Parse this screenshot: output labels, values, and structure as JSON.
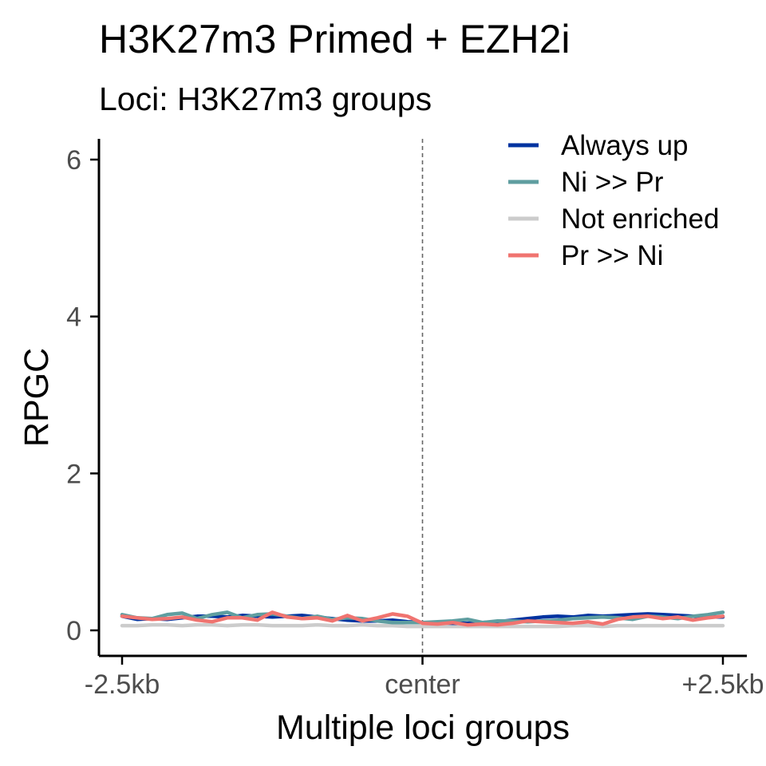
{
  "chart_data": {
    "type": "line",
    "title": "H3K27m3 Primed + EZH2i",
    "subtitle": "Loci: H3K27m3 groups",
    "xlabel": "Multiple loci groups",
    "ylabel": "RPGC",
    "x_tick_labels": [
      "-2.5kb",
      "center",
      "+2.5kb"
    ],
    "y_ticks": [
      0,
      2,
      4,
      6
    ],
    "xlim": [
      -2.5,
      2.5
    ],
    "ylim": [
      0,
      6.2
    ],
    "center_line": "dashed",
    "grid": false,
    "legend_position": "top-right",
    "x": [
      -2.5,
      -2.375,
      -2.25,
      -2.125,
      -2.0,
      -1.875,
      -1.75,
      -1.625,
      -1.5,
      -1.375,
      -1.25,
      -1.125,
      -1.0,
      -0.875,
      -0.75,
      -0.625,
      -0.5,
      -0.375,
      -0.25,
      -0.125,
      0.0,
      0.125,
      0.25,
      0.375,
      0.5,
      0.625,
      0.75,
      0.875,
      1.0,
      1.125,
      1.25,
      1.375,
      1.5,
      1.625,
      1.75,
      1.875,
      2.0,
      2.125,
      2.25,
      2.375,
      2.5
    ],
    "series": [
      {
        "name": "Always up",
        "color": "#0033a0",
        "values": [
          0.18,
          0.14,
          0.15,
          0.14,
          0.16,
          0.18,
          0.18,
          0.17,
          0.19,
          0.18,
          0.17,
          0.18,
          0.19,
          0.17,
          0.15,
          0.13,
          0.12,
          0.12,
          0.13,
          0.11,
          0.1,
          0.1,
          0.09,
          0.09,
          0.1,
          0.11,
          0.13,
          0.15,
          0.17,
          0.18,
          0.17,
          0.19,
          0.18,
          0.19,
          0.2,
          0.21,
          0.2,
          0.19,
          0.18,
          0.17,
          0.17
        ]
      },
      {
        "name": "Ni >> Pr",
        "color": "#5f9ea0",
        "values": [
          0.2,
          0.16,
          0.15,
          0.2,
          0.22,
          0.15,
          0.2,
          0.23,
          0.16,
          0.2,
          0.21,
          0.18,
          0.15,
          0.18,
          0.14,
          0.16,
          0.15,
          0.12,
          0.1,
          0.1,
          0.1,
          0.11,
          0.12,
          0.14,
          0.1,
          0.12,
          0.12,
          0.11,
          0.12,
          0.13,
          0.15,
          0.16,
          0.17,
          0.16,
          0.14,
          0.18,
          0.17,
          0.15,
          0.18,
          0.2,
          0.23
        ]
      },
      {
        "name": "Not enriched",
        "color": "#cccccc",
        "values": [
          0.06,
          0.06,
          0.07,
          0.07,
          0.06,
          0.07,
          0.07,
          0.06,
          0.07,
          0.07,
          0.06,
          0.06,
          0.06,
          0.07,
          0.06,
          0.06,
          0.07,
          0.06,
          0.06,
          0.05,
          0.05,
          0.05,
          0.05,
          0.05,
          0.05,
          0.05,
          0.05,
          0.05,
          0.05,
          0.05,
          0.06,
          0.06,
          0.05,
          0.06,
          0.06,
          0.06,
          0.06,
          0.06,
          0.06,
          0.06,
          0.06
        ]
      },
      {
        "name": "Pr >> Ni",
        "color": "#f07470",
        "values": [
          0.18,
          0.16,
          0.14,
          0.15,
          0.17,
          0.13,
          0.11,
          0.16,
          0.16,
          0.13,
          0.23,
          0.17,
          0.15,
          0.16,
          0.12,
          0.19,
          0.12,
          0.16,
          0.21,
          0.18,
          0.09,
          0.08,
          0.1,
          0.07,
          0.08,
          0.07,
          0.09,
          0.12,
          0.11,
          0.1,
          0.09,
          0.11,
          0.08,
          0.14,
          0.17,
          0.18,
          0.15,
          0.17,
          0.13,
          0.16,
          0.18
        ]
      }
    ]
  }
}
